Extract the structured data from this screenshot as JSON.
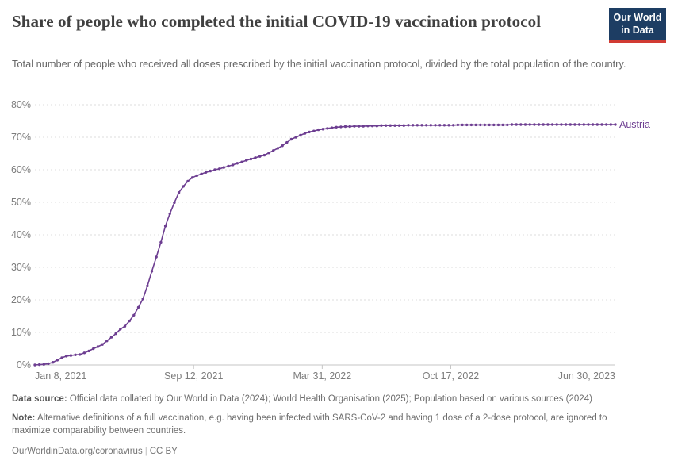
{
  "header": {
    "title": "Share of people who completed the initial COVID-19 vaccination protocol",
    "subtitle": "Total number of people who received all doses prescribed by the initial vaccination protocol, divided by the total population of the country."
  },
  "logo": {
    "line1": "Our World",
    "line2": "in Data"
  },
  "chart_data": {
    "type": "line",
    "title": "Share of people who completed the initial COVID-19 vaccination protocol",
    "xlabel": "",
    "ylabel": "",
    "x_start_date": "2021-01-08",
    "x_end_date": "2023-06-30",
    "x_interval": "weekly",
    "x_total_days": 903,
    "ylim": [
      0,
      80
    ],
    "y_ticks": [
      0,
      10,
      20,
      30,
      40,
      50,
      60,
      70,
      80
    ],
    "y_tick_suffix": "%",
    "grid": "horizontal-dashed",
    "legend_position": "end-of-line-label",
    "x_ticks": [
      {
        "day": 0,
        "label": "Jan 8, 2021"
      },
      {
        "day": 247,
        "label": "Sep 12, 2021"
      },
      {
        "day": 447,
        "label": "Mar 31, 2022"
      },
      {
        "day": 647,
        "label": "Oct 17, 2022"
      },
      {
        "day": 903,
        "label": "Jun 30, 2023"
      }
    ],
    "series": [
      {
        "name": "Austria",
        "color": "#6d3e91",
        "values": [
          0,
          0.1,
          0.2,
          0.4,
          0.8,
          1.5,
          2.2,
          2.7,
          2.9,
          3.1,
          3.2,
          3.7,
          4.3,
          5.0,
          5.6,
          6.3,
          7.4,
          8.5,
          9.6,
          11.0,
          11.9,
          13.5,
          15.3,
          17.7,
          20.3,
          24.3,
          28.8,
          33.2,
          37.7,
          42.7,
          46.5,
          49.9,
          53.0,
          54.9,
          56.5,
          57.6,
          58.2,
          58.7,
          59.2,
          59.6,
          60.0,
          60.3,
          60.7,
          61.1,
          61.5,
          62.0,
          62.4,
          62.9,
          63.3,
          63.7,
          64.1,
          64.5,
          65.2,
          65.9,
          66.6,
          67.4,
          68.4,
          69.4,
          70.0,
          70.6,
          71.2,
          71.6,
          71.9,
          72.3,
          72.5,
          72.7,
          72.9,
          73.1,
          73.2,
          73.3,
          73.3,
          73.4,
          73.4,
          73.4,
          73.5,
          73.5,
          73.5,
          73.6,
          73.6,
          73.6,
          73.6,
          73.6,
          73.6,
          73.7,
          73.7,
          73.7,
          73.7,
          73.7,
          73.7,
          73.7,
          73.7,
          73.7,
          73.7,
          73.7,
          73.8,
          73.8,
          73.8,
          73.8,
          73.8,
          73.8,
          73.8,
          73.8,
          73.8,
          73.8,
          73.8,
          73.8,
          73.9,
          73.9,
          73.9,
          73.9,
          73.9,
          73.9,
          73.9,
          73.9,
          73.9,
          73.9,
          73.9,
          73.9,
          73.9,
          73.9,
          73.9,
          73.9,
          73.9,
          73.9,
          73.9,
          73.9,
          73.9,
          73.9,
          73.9,
          73.9
        ]
      }
    ]
  },
  "colors": {
    "line": "#6d3e91",
    "grid": "#dedede",
    "axis": "#c6c6c6",
    "tick_text": "#7d7d7d",
    "logo_bg": "#1d3d63",
    "logo_accent": "#d13b33"
  },
  "footer": {
    "datasource_label": "Data source:",
    "datasource_text": " Official data collated by Our World in Data (2024); World Health Organisation (2025); Population based on various sources (2024)",
    "note_label": "Note:",
    "note_text": " Alternative definitions of a full vaccination, e.g. having been infected with SARS-CoV-2 and having 1 dose of a 2-dose protocol, are ignored to maximize comparability between countries.",
    "credit_link": "OurWorldinData.org/coronavirus",
    "credit_separator": "|",
    "credit_license": "CC BY"
  }
}
